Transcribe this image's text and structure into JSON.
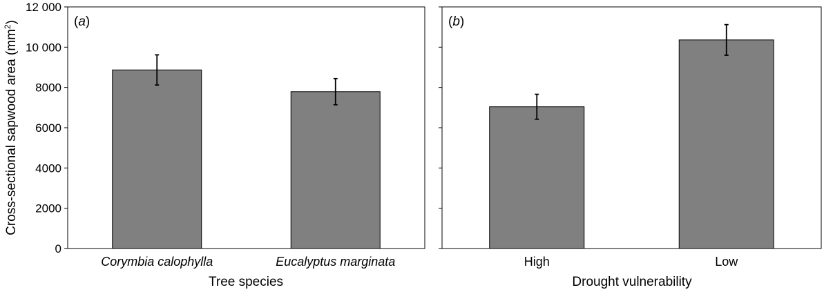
{
  "y_axis": {
    "label": "Cross-sectional sapwood area (mm",
    "label_sup": "2",
    "label_end": ")",
    "tick_labels": [
      "0",
      "2000",
      "4000",
      "6000",
      "8000",
      "10 000",
      "12 000"
    ]
  },
  "colors": {
    "bar_fill": "#808080",
    "bar_stroke": "#000000",
    "axis": "#000000"
  },
  "chart_data": [
    {
      "type": "bar",
      "panel": "a",
      "panel_tag_open": "(",
      "panel_tag_letter": "a",
      "panel_tag_close": ")",
      "xlabel": "Tree species",
      "ylabel": "Cross-sectional sapwood area (mm2)",
      "ylim": [
        0,
        12000
      ],
      "yticks": [
        0,
        2000,
        4000,
        6000,
        8000,
        10000,
        12000
      ],
      "categories": [
        "Corymbia calophylla",
        "Eucalyptus marginata"
      ],
      "categories_italic": true,
      "values": [
        8870,
        7790
      ],
      "errors": [
        750,
        650
      ]
    },
    {
      "type": "bar",
      "panel": "b",
      "panel_tag_open": "(",
      "panel_tag_letter": "b",
      "panel_tag_close": ")",
      "xlabel": "Drought vulnerability",
      "ylabel": "",
      "ylim": [
        0,
        12000
      ],
      "yticks": [
        0,
        2000,
        4000,
        6000,
        8000,
        10000,
        12000
      ],
      "categories": [
        "High",
        "Low"
      ],
      "categories_italic": false,
      "values": [
        7040,
        10360
      ],
      "errors": [
        620,
        760
      ]
    }
  ]
}
